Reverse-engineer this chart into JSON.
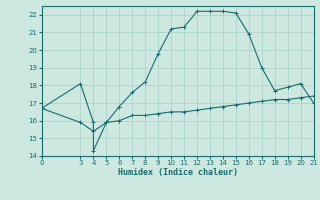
{
  "xlabel": "Humidex (Indice chaleur)",
  "ylabel": "",
  "bg_color": "#cce8e0",
  "grid_color": "#aacfc8",
  "line_color": "#1a6b6b",
  "xlim": [
    0,
    21
  ],
  "ylim": [
    14,
    22.5
  ],
  "yticks": [
    14,
    15,
    16,
    17,
    18,
    19,
    20,
    21,
    22
  ],
  "xticks": [
    0,
    3,
    4,
    5,
    6,
    7,
    8,
    9,
    10,
    11,
    12,
    13,
    14,
    15,
    16,
    17,
    18,
    19,
    20,
    21
  ],
  "curve1_x": [
    0,
    3,
    4,
    4,
    5,
    6,
    7,
    8,
    9,
    10,
    11,
    12,
    13,
    14,
    15,
    16,
    17,
    18,
    19,
    20,
    21
  ],
  "curve1_y": [
    16.7,
    18.1,
    15.9,
    14.3,
    15.9,
    16.8,
    17.6,
    18.2,
    19.8,
    21.2,
    21.3,
    22.2,
    22.2,
    22.2,
    22.1,
    20.9,
    19.0,
    17.7,
    17.9,
    18.1,
    17.0
  ],
  "curve2_x": [
    0,
    3,
    4,
    5,
    6,
    7,
    8,
    9,
    10,
    11,
    12,
    13,
    14,
    15,
    16,
    17,
    18,
    19,
    20,
    21
  ],
  "curve2_y": [
    16.7,
    15.9,
    15.4,
    15.9,
    16.0,
    16.3,
    16.3,
    16.4,
    16.5,
    16.5,
    16.6,
    16.7,
    16.8,
    16.9,
    17.0,
    17.1,
    17.2,
    17.2,
    17.3,
    17.4
  ]
}
